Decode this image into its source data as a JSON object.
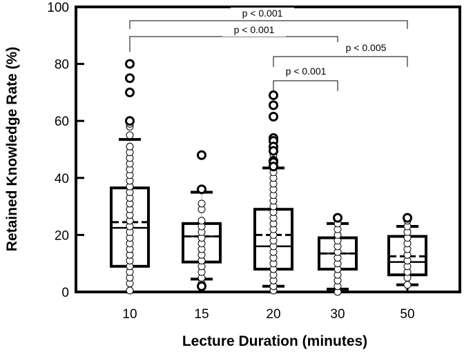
{
  "chart_data": {
    "type": "box",
    "title": "",
    "xlabel": "Lecture Duration (minutes)",
    "ylabel": "Retained Knowledge Rate (%)",
    "ylim": [
      0,
      100
    ],
    "yticks": [
      0,
      20,
      40,
      60,
      80,
      100
    ],
    "categories": [
      "10",
      "15",
      "20",
      "30",
      "50"
    ],
    "boxes": [
      {
        "category": "10",
        "whisker_low": 0,
        "q1": 9,
        "median": 22.5,
        "mean": 24.5,
        "q3": 36.5,
        "whisker_high": 53.5
      },
      {
        "category": "15",
        "whisker_low": 4.5,
        "q1": 10.5,
        "median": 19.5,
        "mean": 19.5,
        "q3": 24,
        "whisker_high": 35
      },
      {
        "category": "20",
        "whisker_low": 2,
        "q1": 8,
        "median": 16,
        "mean": 20,
        "q3": 29,
        "whisker_high": 43.5
      },
      {
        "category": "30",
        "whisker_low": 1,
        "q1": 8,
        "median": 13.5,
        "mean": 13.5,
        "q3": 19,
        "whisker_high": 24
      },
      {
        "category": "50",
        "whisker_low": 2.5,
        "q1": 6,
        "median": 10.5,
        "mean": 12.5,
        "q3": 19.5,
        "whisker_high": 23
      }
    ],
    "points": [
      {
        "category": "10",
        "values": [
          0.5,
          3,
          5,
          7,
          9,
          11,
          13,
          15,
          17,
          19,
          21,
          23,
          25,
          27,
          29,
          31,
          33,
          35,
          37,
          39,
          41,
          43,
          45,
          47,
          49,
          51,
          55,
          58,
          59,
          60
        ]
      },
      {
        "category": "15",
        "values": [
          1.5,
          3,
          5,
          7,
          9,
          11,
          13,
          15,
          17,
          19,
          21,
          23,
          25,
          29,
          31
        ]
      },
      {
        "category": "20",
        "values": [
          0.5,
          2,
          4,
          6,
          8,
          10,
          12,
          14,
          16,
          18,
          20,
          22,
          24,
          26,
          28,
          30,
          32,
          34,
          36,
          38,
          40,
          42,
          44,
          46,
          48,
          50,
          52
        ]
      },
      {
        "category": "30",
        "values": [
          0,
          2,
          4,
          6,
          8,
          10,
          12,
          14,
          16,
          18,
          20,
          22,
          24,
          26
        ]
      },
      {
        "category": "50",
        "values": [
          2.5,
          5,
          7,
          9,
          11,
          13,
          15,
          17,
          19,
          21,
          23,
          25,
          26
        ]
      }
    ],
    "outliers": [
      {
        "category": "10",
        "values": [
          80,
          75,
          70,
          60
        ]
      },
      {
        "category": "15",
        "values": [
          48,
          36,
          2
        ]
      },
      {
        "category": "20",
        "values": [
          69,
          65.5,
          61.5,
          54,
          53,
          51,
          49.5,
          46,
          45.5,
          44
        ]
      },
      {
        "category": "30",
        "values": [
          26
        ]
      },
      {
        "category": "50",
        "values": [
          26
        ]
      }
    ],
    "significance": [
      {
        "from": "10",
        "to": "50",
        "label": "p < 0.001"
      },
      {
        "from": "10",
        "to": "30",
        "label": "p < 0.001"
      },
      {
        "from": "20",
        "to": "50",
        "label": "p < 0.005"
      },
      {
        "from": "20",
        "to": "30",
        "label": "p < 0.001"
      }
    ]
  }
}
